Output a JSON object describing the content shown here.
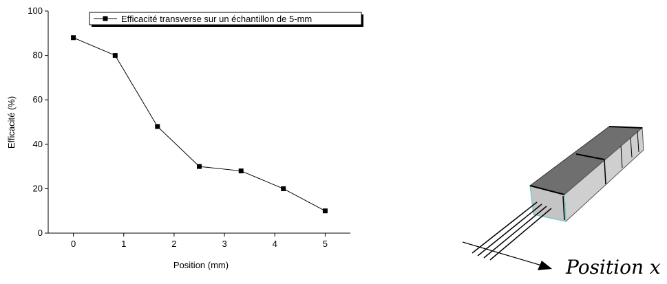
{
  "chart_data": {
    "type": "line",
    "xlabel": "Position (mm)",
    "ylabel": "Efficacité (%)",
    "annotation": "Position x",
    "series": [
      {
        "name": "Efficacité transverse sur un échantillon de 5-mm",
        "color": "#000000",
        "x": [
          0,
          0.83,
          1.67,
          2.5,
          3.33,
          4.17,
          5
        ],
        "values": [
          88,
          80,
          48,
          30,
          28,
          20,
          10
        ]
      }
    ],
    "xlim": [
      -0.5,
      5.5
    ],
    "xticks": [
      0,
      1,
      2,
      3,
      4,
      5
    ],
    "ylim": [
      0,
      100
    ],
    "yticks": [
      0,
      20,
      40,
      60,
      80,
      100
    ]
  }
}
